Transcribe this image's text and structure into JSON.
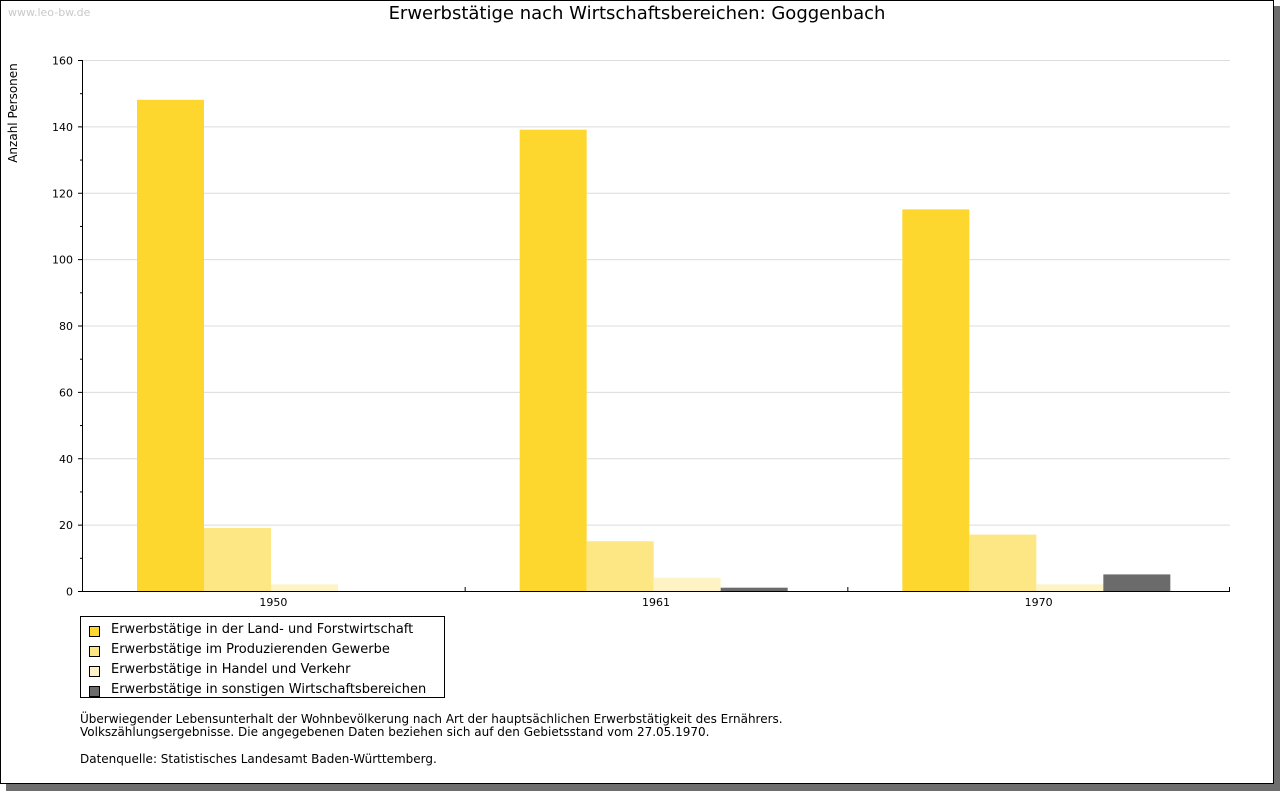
{
  "watermark": "www.leo-bw.de",
  "notes": {
    "line1": "Überwiegender Lebensunterhalt der Wohnbevölkerung nach Art der hauptsächlichen Erwerbstätigkeit des Ernährers.",
    "line2": "Volkszählungsergebnisse. Die angegebenen Daten beziehen sich auf den Gebietsstand vom 27.05.1970.",
    "source": "Datenquelle: Statistisches Landesamt Baden-Württemberg."
  },
  "chart_data": {
    "type": "bar",
    "title": "Erwerbstätige nach Wirtschaftsbereichen: Goggenbach",
    "xlabel": "",
    "ylabel": "Anzahl Personen",
    "ylim": [
      0,
      160
    ],
    "yticks": [
      0,
      20,
      40,
      60,
      80,
      100,
      120,
      140,
      160
    ],
    "grid": true,
    "legend_position": "bottom-left",
    "categories": [
      "1950",
      "1961",
      "1970"
    ],
    "series": [
      {
        "name": "Erwerbstätige in der Land- und Forstwirtschaft",
        "color": "#fdd72e",
        "values": [
          148,
          139,
          115
        ]
      },
      {
        "name": "Erwerbstätige im Produzierenden Gewerbe",
        "color": "#fde684",
        "values": [
          19,
          15,
          17
        ]
      },
      {
        "name": "Erwerbstätige in Handel und Verkehr",
        "color": "#fef3c4",
        "values": [
          2,
          4,
          2
        ]
      },
      {
        "name": "Erwerbstätige in sonstigen Wirtschaftsbereichen",
        "color": "#6b6b6b",
        "values": [
          0,
          1,
          5
        ]
      }
    ]
  }
}
